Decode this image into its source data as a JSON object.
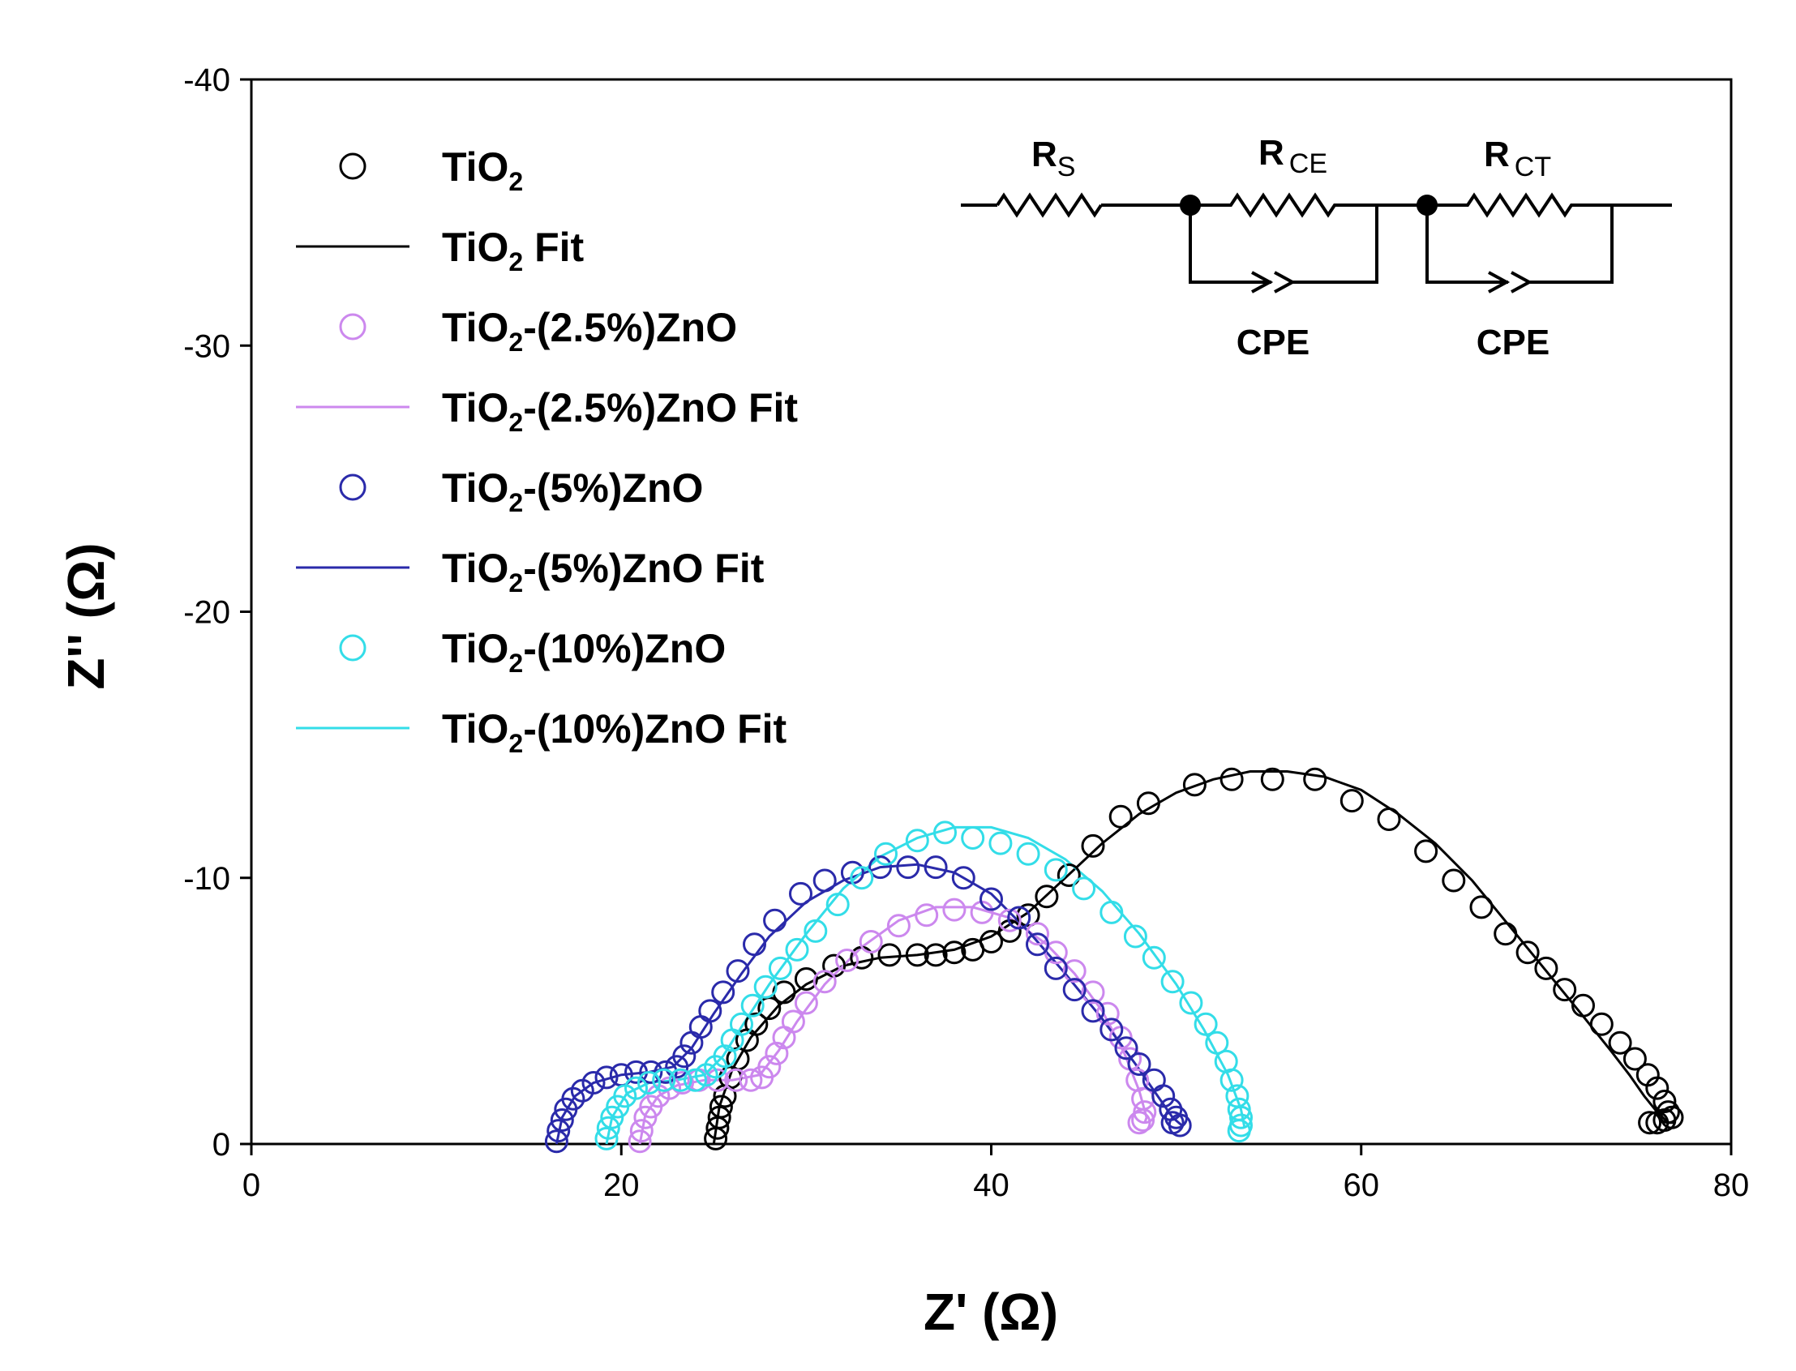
{
  "chart_data": {
    "type": "scatter",
    "title": "",
    "xlabel": "Z' (Ω)",
    "ylabel": "Z'' (Ω)",
    "xlim": [
      0,
      80
    ],
    "ylim": [
      0,
      -40
    ],
    "x_ticks": [
      "0",
      "20",
      "40",
      "60",
      "80"
    ],
    "y_ticks": [
      "0",
      "-10",
      "-20",
      "-30",
      "-40"
    ],
    "grid": false,
    "legend_position": "top-left",
    "series": [
      {
        "name": "TiO2",
        "color": "#000000",
        "legend": {
          "main": "TiO",
          "sub": "2",
          "suffix": ""
        },
        "fit_legend": {
          "main": "TiO",
          "sub": "2",
          "suffix": " Fit"
        },
        "points": [
          [
            25.1,
            -0.2
          ],
          [
            25.2,
            -0.6
          ],
          [
            25.3,
            -1.0
          ],
          [
            25.4,
            -1.4
          ],
          [
            25.6,
            -1.8
          ],
          [
            25.9,
            -2.5
          ],
          [
            26.3,
            -3.2
          ],
          [
            26.8,
            -3.9
          ],
          [
            27.3,
            -4.5
          ],
          [
            28.0,
            -5.1
          ],
          [
            28.8,
            -5.7
          ],
          [
            30.0,
            -6.2
          ],
          [
            31.5,
            -6.7
          ],
          [
            33.0,
            -7.0
          ],
          [
            34.5,
            -7.1
          ],
          [
            36.0,
            -7.1
          ],
          [
            37.0,
            -7.1
          ],
          [
            38.0,
            -7.2
          ],
          [
            39.0,
            -7.3
          ],
          [
            40.0,
            -7.6
          ],
          [
            41.0,
            -8.0
          ],
          [
            42.0,
            -8.6
          ],
          [
            43.0,
            -9.3
          ],
          [
            44.2,
            -10.1
          ],
          [
            45.5,
            -11.2
          ],
          [
            47.0,
            -12.3
          ],
          [
            48.5,
            -12.8
          ],
          [
            51.0,
            -13.5
          ],
          [
            53.0,
            -13.7
          ],
          [
            55.2,
            -13.7
          ],
          [
            57.5,
            -13.7
          ],
          [
            59.5,
            -12.9
          ],
          [
            61.5,
            -12.2
          ],
          [
            63.5,
            -11.0
          ],
          [
            65.0,
            -9.9
          ],
          [
            66.5,
            -8.9
          ],
          [
            67.8,
            -7.9
          ],
          [
            69.0,
            -7.2
          ],
          [
            70.0,
            -6.6
          ],
          [
            71.0,
            -5.8
          ],
          [
            72.0,
            -5.2
          ],
          [
            73.0,
            -4.5
          ],
          [
            74.0,
            -3.8
          ],
          [
            74.8,
            -3.2
          ],
          [
            75.5,
            -2.6
          ],
          [
            76.0,
            -2.1
          ],
          [
            76.4,
            -1.6
          ],
          [
            76.6,
            -1.2
          ],
          [
            76.8,
            -1.0
          ],
          [
            76.4,
            -0.9
          ],
          [
            76.0,
            -0.8
          ],
          [
            75.6,
            -0.8
          ]
        ],
        "fit": [
          [
            25.0,
            0.0
          ],
          [
            25.3,
            -1.4
          ],
          [
            26.0,
            -2.8
          ],
          [
            27.0,
            -4.0
          ],
          [
            28.5,
            -5.2
          ],
          [
            30.0,
            -6.0
          ],
          [
            32.0,
            -6.7
          ],
          [
            34.0,
            -7.0
          ],
          [
            36.0,
            -7.1
          ],
          [
            38.0,
            -7.3
          ],
          [
            40.0,
            -7.8
          ],
          [
            42.0,
            -8.7
          ],
          [
            44.0,
            -10.0
          ],
          [
            46.0,
            -11.3
          ],
          [
            48.0,
            -12.4
          ],
          [
            50.0,
            -13.2
          ],
          [
            52.0,
            -13.7
          ],
          [
            54.0,
            -14.0
          ],
          [
            56.0,
            -14.0
          ],
          [
            58.0,
            -13.8
          ],
          [
            60.0,
            -13.3
          ],
          [
            62.0,
            -12.4
          ],
          [
            64.0,
            -11.3
          ],
          [
            66.0,
            -9.9
          ],
          [
            68.0,
            -8.2
          ],
          [
            70.0,
            -6.5
          ],
          [
            72.0,
            -4.8
          ],
          [
            73.5,
            -3.5
          ],
          [
            74.5,
            -2.6
          ],
          [
            75.3,
            -1.8
          ],
          [
            76.0,
            -1.2
          ],
          [
            76.6,
            -0.8
          ],
          [
            77.0,
            -0.8
          ]
        ]
      },
      {
        "name": "TiO2-(2.5%)ZnO",
        "color": "#cc88ee",
        "legend": {
          "main": "TiO",
          "sub": "2",
          "suffix": "-(2.5%)ZnO"
        },
        "fit_legend": {
          "main": "TiO",
          "sub": "2",
          "suffix": "-(2.5%)ZnO Fit"
        },
        "points": [
          [
            21.0,
            -0.1
          ],
          [
            21.1,
            -0.5
          ],
          [
            21.3,
            -1.0
          ],
          [
            21.6,
            -1.4
          ],
          [
            22.0,
            -1.8
          ],
          [
            22.6,
            -2.1
          ],
          [
            23.3,
            -2.3
          ],
          [
            24.2,
            -2.4
          ],
          [
            25.2,
            -2.4
          ],
          [
            26.2,
            -2.4
          ],
          [
            27.0,
            -2.4
          ],
          [
            27.6,
            -2.5
          ],
          [
            28.0,
            -2.9
          ],
          [
            28.4,
            -3.4
          ],
          [
            28.8,
            -4.0
          ],
          [
            29.3,
            -4.6
          ],
          [
            30.0,
            -5.3
          ],
          [
            31.0,
            -6.1
          ],
          [
            32.2,
            -6.9
          ],
          [
            33.5,
            -7.6
          ],
          [
            35.0,
            -8.2
          ],
          [
            36.5,
            -8.6
          ],
          [
            38.0,
            -8.8
          ],
          [
            39.5,
            -8.7
          ],
          [
            41.0,
            -8.4
          ],
          [
            42.5,
            -7.9
          ],
          [
            43.5,
            -7.2
          ],
          [
            44.5,
            -6.5
          ],
          [
            45.5,
            -5.7
          ],
          [
            46.3,
            -4.9
          ],
          [
            47.0,
            -4.0
          ],
          [
            47.5,
            -3.2
          ],
          [
            47.9,
            -2.4
          ],
          [
            48.2,
            -1.7
          ],
          [
            48.3,
            -1.2
          ],
          [
            48.2,
            -0.9
          ],
          [
            48.0,
            -0.8
          ]
        ],
        "fit": [
          [
            21.0,
            0.0
          ],
          [
            21.3,
            -1.1
          ],
          [
            22.0,
            -1.8
          ],
          [
            23.0,
            -2.2
          ],
          [
            24.5,
            -2.4
          ],
          [
            26.0,
            -2.4
          ],
          [
            27.5,
            -2.6
          ],
          [
            28.5,
            -3.5
          ],
          [
            29.5,
            -4.6
          ],
          [
            31.0,
            -6.0
          ],
          [
            33.0,
            -7.4
          ],
          [
            35.0,
            -8.4
          ],
          [
            37.0,
            -8.9
          ],
          [
            39.0,
            -8.9
          ],
          [
            41.0,
            -8.5
          ],
          [
            43.0,
            -7.5
          ],
          [
            44.5,
            -6.4
          ],
          [
            46.0,
            -5.0
          ],
          [
            47.2,
            -3.4
          ],
          [
            48.0,
            -2.0
          ],
          [
            48.4,
            -1.0
          ],
          [
            48.3,
            -0.8
          ]
        ]
      },
      {
        "name": "TiO2-(5%)ZnO",
        "color": "#2a2aaa",
        "legend": {
          "main": "TiO",
          "sub": "2",
          "suffix": "-(5%)ZnO"
        },
        "fit_legend": {
          "main": "TiO",
          "sub": "2",
          "suffix": "-(5%)ZnO Fit"
        },
        "points": [
          [
            16.5,
            -0.1
          ],
          [
            16.6,
            -0.5
          ],
          [
            16.8,
            -0.9
          ],
          [
            17.0,
            -1.3
          ],
          [
            17.4,
            -1.7
          ],
          [
            17.9,
            -2.0
          ],
          [
            18.5,
            -2.3
          ],
          [
            19.2,
            -2.5
          ],
          [
            20.0,
            -2.6
          ],
          [
            20.8,
            -2.7
          ],
          [
            21.6,
            -2.7
          ],
          [
            22.4,
            -2.7
          ],
          [
            23.0,
            -2.9
          ],
          [
            23.4,
            -3.3
          ],
          [
            23.8,
            -3.8
          ],
          [
            24.3,
            -4.4
          ],
          [
            24.8,
            -5.0
          ],
          [
            25.5,
            -5.7
          ],
          [
            26.3,
            -6.5
          ],
          [
            27.2,
            -7.5
          ],
          [
            28.3,
            -8.4
          ],
          [
            29.7,
            -9.4
          ],
          [
            31.0,
            -9.9
          ],
          [
            32.5,
            -10.2
          ],
          [
            34.0,
            -10.4
          ],
          [
            35.5,
            -10.4
          ],
          [
            37.0,
            -10.4
          ],
          [
            38.5,
            -10.0
          ],
          [
            40.0,
            -9.2
          ],
          [
            41.5,
            -8.5
          ],
          [
            42.5,
            -7.5
          ],
          [
            43.5,
            -6.6
          ],
          [
            44.5,
            -5.8
          ],
          [
            45.5,
            -5.0
          ],
          [
            46.5,
            -4.3
          ],
          [
            47.3,
            -3.6
          ],
          [
            48.0,
            -3.0
          ],
          [
            48.8,
            -2.4
          ],
          [
            49.3,
            -1.8
          ],
          [
            49.7,
            -1.3
          ],
          [
            50.0,
            -1.0
          ],
          [
            50.2,
            -0.7
          ],
          [
            49.8,
            -0.8
          ]
        ],
        "fit": [
          [
            16.5,
            0.0
          ],
          [
            16.8,
            -1.0
          ],
          [
            17.5,
            -1.8
          ],
          [
            18.5,
            -2.3
          ],
          [
            20.0,
            -2.6
          ],
          [
            21.5,
            -2.7
          ],
          [
            22.8,
            -2.9
          ],
          [
            23.8,
            -3.6
          ],
          [
            25.0,
            -4.9
          ],
          [
            26.5,
            -6.4
          ],
          [
            28.0,
            -7.8
          ],
          [
            30.0,
            -9.1
          ],
          [
            32.0,
            -9.9
          ],
          [
            34.0,
            -10.4
          ],
          [
            36.0,
            -10.5
          ],
          [
            38.0,
            -10.2
          ],
          [
            40.0,
            -9.4
          ],
          [
            42.0,
            -8.0
          ],
          [
            44.0,
            -6.4
          ],
          [
            46.0,
            -4.7
          ],
          [
            47.8,
            -3.0
          ],
          [
            49.0,
            -1.8
          ],
          [
            49.8,
            -1.0
          ],
          [
            50.3,
            -0.7
          ]
        ]
      },
      {
        "name": "TiO2-(10%)ZnO",
        "color": "#33dde8",
        "legend": {
          "main": "TiO",
          "sub": "2",
          "suffix": "-(10%)ZnO"
        },
        "fit_legend": {
          "main": "TiO",
          "sub": "2",
          "suffix": "-(10%)ZnO Fit"
        },
        "points": [
          [
            19.2,
            -0.2
          ],
          [
            19.3,
            -0.6
          ],
          [
            19.5,
            -1.0
          ],
          [
            19.8,
            -1.4
          ],
          [
            20.2,
            -1.8
          ],
          [
            20.8,
            -2.1
          ],
          [
            21.5,
            -2.3
          ],
          [
            22.3,
            -2.4
          ],
          [
            23.2,
            -2.4
          ],
          [
            24.0,
            -2.4
          ],
          [
            24.6,
            -2.6
          ],
          [
            25.1,
            -2.9
          ],
          [
            25.6,
            -3.3
          ],
          [
            26.0,
            -3.9
          ],
          [
            26.5,
            -4.5
          ],
          [
            27.1,
            -5.2
          ],
          [
            27.8,
            -5.9
          ],
          [
            28.6,
            -6.6
          ],
          [
            29.5,
            -7.3
          ],
          [
            30.5,
            -8.0
          ],
          [
            31.7,
            -9.0
          ],
          [
            33.0,
            -10.0
          ],
          [
            34.3,
            -10.9
          ],
          [
            36.0,
            -11.4
          ],
          [
            37.5,
            -11.7
          ],
          [
            39.0,
            -11.5
          ],
          [
            40.5,
            -11.3
          ],
          [
            42.0,
            -10.9
          ],
          [
            43.5,
            -10.3
          ],
          [
            45.0,
            -9.6
          ],
          [
            46.5,
            -8.7
          ],
          [
            47.8,
            -7.8
          ],
          [
            48.8,
            -7.0
          ],
          [
            49.8,
            -6.1
          ],
          [
            50.8,
            -5.3
          ],
          [
            51.6,
            -4.5
          ],
          [
            52.2,
            -3.8
          ],
          [
            52.7,
            -3.1
          ],
          [
            53.0,
            -2.4
          ],
          [
            53.3,
            -1.8
          ],
          [
            53.4,
            -1.3
          ],
          [
            53.5,
            -1.0
          ],
          [
            53.5,
            -0.7
          ],
          [
            53.4,
            -0.5
          ]
        ],
        "fit": [
          [
            19.2,
            0.0
          ],
          [
            19.5,
            -1.0
          ],
          [
            20.3,
            -1.9
          ],
          [
            21.5,
            -2.3
          ],
          [
            23.0,
            -2.4
          ],
          [
            24.5,
            -2.6
          ],
          [
            25.5,
            -3.3
          ],
          [
            26.5,
            -4.4
          ],
          [
            28.0,
            -6.0
          ],
          [
            30.0,
            -7.9
          ],
          [
            32.0,
            -9.6
          ],
          [
            34.0,
            -10.8
          ],
          [
            36.0,
            -11.5
          ],
          [
            38.0,
            -11.9
          ],
          [
            40.0,
            -11.9
          ],
          [
            42.0,
            -11.5
          ],
          [
            44.0,
            -10.7
          ],
          [
            46.0,
            -9.5
          ],
          [
            48.0,
            -7.9
          ],
          [
            50.0,
            -6.0
          ],
          [
            51.5,
            -4.3
          ],
          [
            52.8,
            -2.6
          ],
          [
            53.5,
            -1.3
          ],
          [
            53.7,
            -0.6
          ]
        ]
      }
    ]
  },
  "circuit": {
    "rs_main": "R",
    "rs_sub": "S",
    "rce_main": "R",
    "rce_sub": "CE",
    "rct_main": "R",
    "rct_sub": "CT",
    "cpe1_label": "CPE",
    "cpe2_label": "CPE"
  }
}
